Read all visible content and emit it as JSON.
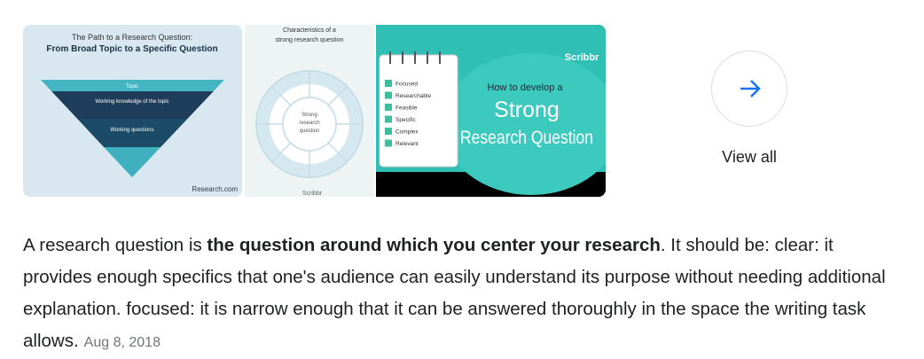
{
  "image_1": {
    "title_lines": [
      "The Path to a Research Question:",
      "From Broad Topic to a Specific Question"
    ],
    "layers": [
      "Topic",
      "Working knowledge of the topic",
      "Working questions"
    ],
    "source": "Research.com"
  },
  "image_2": {
    "title_lines": [
      "Characteristics of a",
      "strong research question"
    ],
    "center_lines": [
      "Strong",
      "research",
      "question"
    ],
    "brand": "Scribbr"
  },
  "image_3": {
    "brand": "Scribbr",
    "checklist": [
      "Focused",
      "Researchable",
      "Feasible",
      "Specific",
      "Complex",
      "Relevant"
    ],
    "heading_lines": [
      "How to develop a",
      "Strong",
      "Research Question"
    ]
  },
  "view_all": "View all",
  "snippet": {
    "before": "A research question is ",
    "bold": "the question around which you center your research",
    "after": ". It should be: clear: it provides enough specifics that one's audience can easily understand its purpose without needing additional explanation. focused: it is narrow enough that it can be answered thoroughly in the space the writing task allows.",
    "date": "Aug 8, 2018"
  }
}
